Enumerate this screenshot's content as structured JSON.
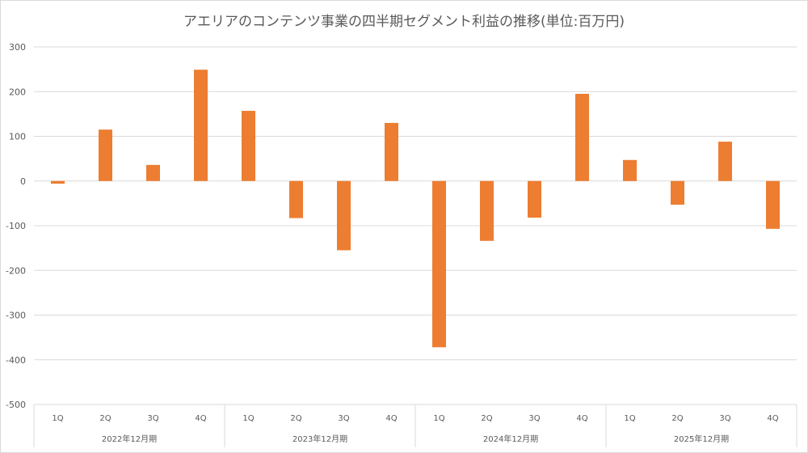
{
  "chart_data": {
    "type": "bar",
    "title": "アエリアのコンテンツ事業の四半期セグメント利益の推移(単位:百万円)",
    "groups": [
      {
        "label": "2022年12月期",
        "categories": [
          "1Q",
          "2Q",
          "3Q",
          "4Q"
        ]
      },
      {
        "label": "2023年12月期",
        "categories": [
          "1Q",
          "2Q",
          "3Q",
          "4Q"
        ]
      },
      {
        "label": "2024年12月期",
        "categories": [
          "1Q",
          "2Q",
          "3Q",
          "4Q"
        ]
      },
      {
        "label": "2025年12月期",
        "categories": [
          "1Q",
          "2Q",
          "3Q",
          "4Q"
        ]
      }
    ],
    "categories": [
      "1Q",
      "2Q",
      "3Q",
      "4Q",
      "1Q",
      "2Q",
      "3Q",
      "4Q",
      "1Q",
      "2Q",
      "3Q",
      "4Q",
      "1Q",
      "2Q",
      "3Q",
      "4Q"
    ],
    "values": [
      -6,
      115,
      36,
      249,
      157,
      -83,
      -155,
      130,
      -372,
      -134,
      -82,
      195,
      47,
      -53,
      88,
      -107
    ],
    "ylim": [
      -500,
      300
    ],
    "yticks": [
      300,
      200,
      100,
      0,
      -100,
      -200,
      -300,
      -400,
      -500
    ],
    "ytick_labels": [
      "300",
      "200",
      "100",
      "0",
      "-100",
      "-200",
      "-300",
      "-400",
      "-500"
    ],
    "bar_color": "#ED7D31",
    "grid": true
  }
}
